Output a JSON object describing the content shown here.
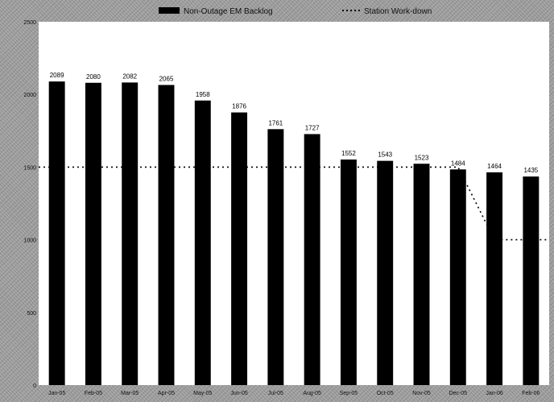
{
  "chart_data": {
    "type": "bar",
    "title": "",
    "xlabel": "",
    "ylabel": "",
    "ylim": [
      0,
      2500
    ],
    "yticks": [
      0,
      500,
      1000,
      1500,
      2000,
      2500
    ],
    "categories": [
      "Jan-05",
      "Feb-05",
      "Mar-05",
      "Apr-05",
      "May-05",
      "Jun-05",
      "Jul-05",
      "Aug-05",
      "Sep-05",
      "Oct-05",
      "Nov-05",
      "Dec-05",
      "Jan-06",
      "Feb-06"
    ],
    "series": [
      {
        "name": "Non-Outage EM Backlog",
        "type": "bar",
        "color": "#000000",
        "values": [
          2089,
          2080,
          2082,
          2065,
          1958,
          1876,
          1761,
          1727,
          1552,
          1543,
          1523,
          1484,
          1464,
          1435
        ]
      },
      {
        "name": "Station Work-down",
        "type": "line",
        "style": "dotted",
        "color": "#000000",
        "values": [
          1500,
          1500,
          1500,
          1500,
          1500,
          1500,
          1500,
          1500,
          1500,
          1500,
          1500,
          1500,
          1000,
          1000
        ]
      }
    ],
    "legend_position": "top",
    "grid": false
  }
}
